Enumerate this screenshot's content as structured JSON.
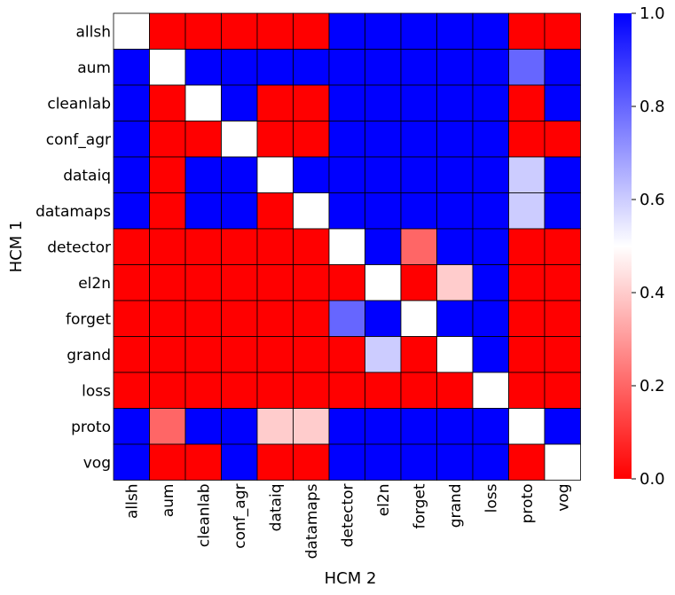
{
  "chart_data": {
    "type": "heatmap",
    "xlabel": "HCM 2",
    "ylabel": "HCM 1",
    "rows": [
      "allsh",
      "aum",
      "cleanlab",
      "conf_agr",
      "dataiq",
      "datamaps",
      "detector",
      "el2n",
      "forget",
      "grand",
      "loss",
      "proto",
      "vog"
    ],
    "cols": [
      "allsh",
      "aum",
      "cleanlab",
      "conf_agr",
      "dataiq",
      "datamaps",
      "detector",
      "el2n",
      "forget",
      "grand",
      "loss",
      "proto",
      "vog"
    ],
    "values": [
      [
        0.5,
        0,
        0,
        0,
        0,
        0,
        1,
        1,
        1,
        1,
        1,
        0,
        0
      ],
      [
        1,
        0.5,
        1,
        1,
        1,
        1,
        1,
        1,
        1,
        1,
        1,
        0.8,
        1
      ],
      [
        1,
        0,
        0.5,
        1,
        0,
        0,
        1,
        1,
        1,
        1,
        1,
        0,
        1
      ],
      [
        1,
        0,
        0,
        0.5,
        0,
        0,
        1,
        1,
        1,
        1,
        1,
        0,
        0
      ],
      [
        1,
        0,
        1,
        1,
        0.5,
        1,
        1,
        1,
        1,
        1,
        1,
        0.6,
        1
      ],
      [
        1,
        0,
        1,
        1,
        0,
        0.5,
        1,
        1,
        1,
        1,
        1,
        0.6,
        1
      ],
      [
        0,
        0,
        0,
        0,
        0,
        0,
        0.5,
        1,
        0.2,
        1,
        1,
        0,
        0
      ],
      [
        0,
        0,
        0,
        0,
        0,
        0,
        0,
        0.5,
        0,
        0.4,
        1,
        0,
        0
      ],
      [
        0,
        0,
        0,
        0,
        0,
        0,
        0.8,
        1,
        0.5,
        1,
        1,
        0,
        0
      ],
      [
        0,
        0,
        0,
        0,
        0,
        0,
        0,
        0.6,
        0,
        0.5,
        1,
        0,
        0
      ],
      [
        0,
        0,
        0,
        0,
        0,
        0,
        0,
        0,
        0,
        0,
        0.5,
        0,
        0
      ],
      [
        1,
        0.2,
        1,
        1,
        0.4,
        0.4,
        1,
        1,
        1,
        1,
        1,
        0.5,
        1
      ],
      [
        1,
        0,
        0,
        1,
        0,
        0,
        1,
        1,
        1,
        1,
        1,
        0,
        0.5
      ]
    ],
    "vmin": 0,
    "vmax": 1,
    "colormap": {
      "low": "#ff0000",
      "mid": "#ffffff",
      "high": "#0000ff"
    },
    "colorbar": {
      "ticks": [
        0.0,
        0.2,
        0.4,
        0.6,
        0.8,
        1.0
      ],
      "tick_labels": [
        "0.0",
        "0.2",
        "0.4",
        "0.6",
        "0.8",
        "1.0"
      ]
    },
    "grid": true
  }
}
